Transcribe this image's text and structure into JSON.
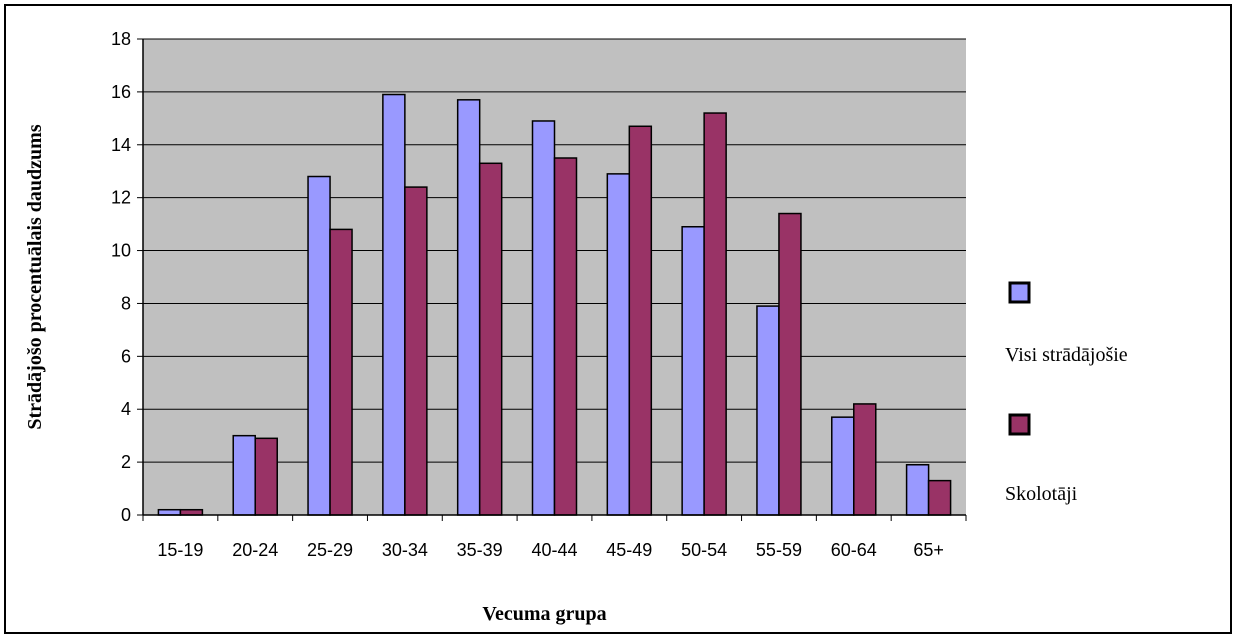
{
  "chart_data": {
    "type": "bar",
    "categories": [
      "15-19",
      "20-24",
      "25-29",
      "30-34",
      "35-39",
      "40-44",
      "45-49",
      "50-54",
      "55-59",
      "60-64",
      "65+"
    ],
    "series": [
      {
        "name": "Visi strādājošie",
        "color": "#9999ff",
        "values": [
          0.2,
          3.0,
          12.8,
          15.9,
          15.7,
          14.9,
          12.9,
          10.9,
          7.9,
          3.7,
          1.9
        ]
      },
      {
        "name": "Skolotāji",
        "color": "#993366",
        "values": [
          0.2,
          2.9,
          10.8,
          12.4,
          13.3,
          13.5,
          14.7,
          15.2,
          11.4,
          4.2,
          1.3
        ]
      }
    ],
    "xlabel": "Vecuma grupa",
    "ylabel": "Strādājošo procentuālais daudzums",
    "ylim": [
      0,
      18
    ],
    "yticks": [
      0,
      2,
      4,
      6,
      8,
      10,
      12,
      14,
      16,
      18
    ],
    "grid": true,
    "plot_background": "#c0c0c0",
    "legend_position": "right"
  }
}
